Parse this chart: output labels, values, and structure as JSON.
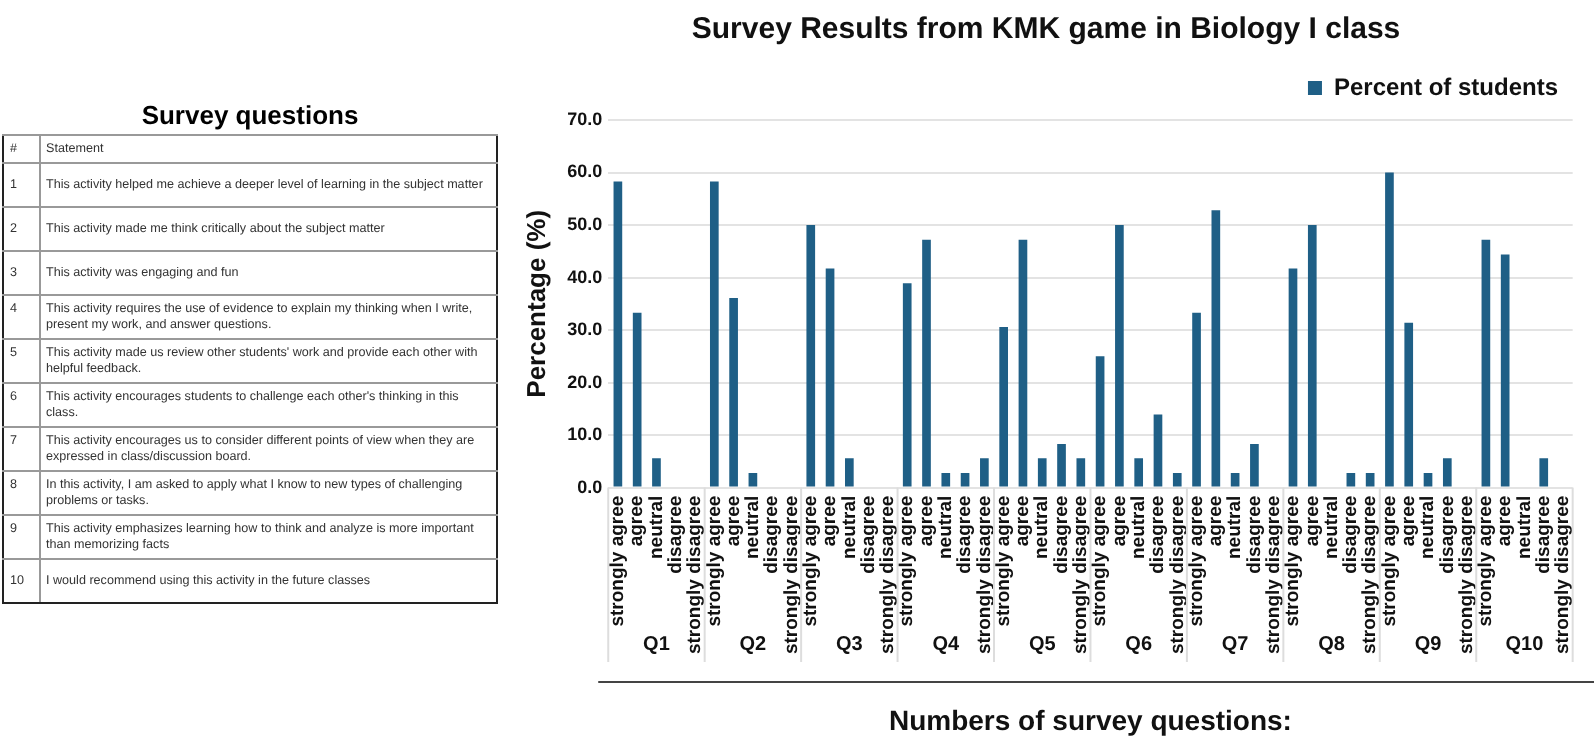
{
  "chart_data": [
    {
      "type": "other",
      "title": "Survey questions",
      "annotations": [
        "#",
        "Statement",
        "1",
        "This activity helped me achieve a deeper level of learning in the subject matter",
        "2",
        "This activity made me think critically about the subject matter",
        "3",
        "This activity was engaging and fun",
        "4",
        "This activity requires the use of evidence to explain my thinking when I write, present my work, and answer questions.",
        "5",
        "This activity made us review other students' work and provide each other with helpful feedback.",
        "6",
        "This activity encourages students to challenge each other's thinking in this class.",
        "7",
        "This activity encourages us to consider different points of view when they are expressed in class/discussion board.",
        "8",
        "In this activity, I am asked to apply what I know to new types of challenging problems or tasks.",
        "9",
        "This activity emphasizes learning how to think and analyze is more important than memorizing facts",
        "10",
        "I would recommend using this activity in the future classes"
      ]
    },
    {
      "type": "bar",
      "title": "Survey Results from KMK game in Biology I class",
      "xlabel": "Numbers of survey questions:",
      "ylabel": "Percentage (%)",
      "categories": [
        "strongly agree",
        "agree",
        "neutral",
        "disagree",
        "strongly disagree",
        "strongly agree",
        "agree",
        "neutral",
        "disagree",
        "strongly disagree",
        "strongly agree",
        "agree",
        "neutral",
        "disagree",
        "strongly disagree",
        "strongly agree",
        "agree",
        "neutral",
        "disagree",
        "strongly disagree",
        "strongly agree",
        "agree",
        "neutral",
        "disagree",
        "strongly disagree",
        "strongly agree",
        "agree",
        "neutral",
        "disagree",
        "strongly disagree",
        "strongly agree",
        "agree",
        "neutral",
        "disagree",
        "strongly disagree",
        "strongly agree",
        "agree",
        "neutral",
        "disagree",
        "strongly disagree",
        "strongly agree",
        "agree",
        "neutral",
        "disagree",
        "strongly disagree",
        "strongly agree",
        "agree",
        "neutral",
        "disagree",
        "strongly disagree"
      ],
      "series": [
        {
          "name": "Percent of students",
          "color": "#1f5f86",
          "values": [
            58.3,
            33.3,
            5.6,
            0,
            0,
            58.3,
            36.1,
            2.8,
            0,
            0,
            50.0,
            41.7,
            5.6,
            0,
            0,
            38.9,
            47.2,
            2.8,
            2.8,
            5.6,
            30.6,
            47.2,
            5.6,
            8.3,
            5.6,
            25.0,
            50.0,
            5.6,
            13.9,
            2.8,
            33.3,
            52.8,
            2.8,
            8.3,
            0,
            41.7,
            50.0,
            0,
            2.8,
            2.8,
            60.0,
            31.4,
            2.8,
            5.6,
            0,
            47.2,
            44.4,
            0,
            5.6,
            0
          ]
        }
      ],
      "annotations": [
        "Q1",
        "Q2",
        "Q3",
        "Q4",
        "Q5",
        "Q6",
        "Q7",
        "Q8",
        "Q9",
        "Q10"
      ],
      "ylim": [
        0,
        70
      ],
      "yticks": [
        {
          "value": 0,
          "label": "0.0"
        },
        {
          "value": 10,
          "label": "10.0"
        },
        {
          "value": 20,
          "label": "20.0"
        },
        {
          "value": 30,
          "label": "30.0"
        },
        {
          "value": 40,
          "label": "40.0"
        },
        {
          "value": 50,
          "label": "50.0"
        },
        {
          "value": 60,
          "label": "60.0"
        },
        {
          "value": 70,
          "label": "70.0"
        }
      ],
      "grid": "y",
      "legend": "top right"
    }
  ]
}
